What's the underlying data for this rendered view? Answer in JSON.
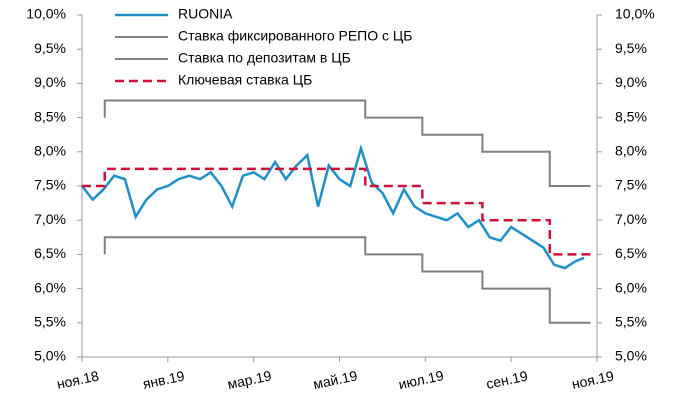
{
  "chart_data": {
    "type": "line",
    "xticks": [
      {
        "value": 0,
        "label": "ноя.18"
      },
      {
        "value": 2,
        "label": "янв.19"
      },
      {
        "value": 4,
        "label": "мар.19"
      },
      {
        "value": 6,
        "label": "май.19"
      },
      {
        "value": 8,
        "label": "июл.19"
      },
      {
        "value": 10,
        "label": "сен.19"
      },
      {
        "value": 12,
        "label": "ноя.19"
      }
    ],
    "xlim": [
      0,
      12
    ],
    "ylim": [
      5,
      10
    ],
    "yticks": [
      {
        "value": 5,
        "label": "5,0%"
      },
      {
        "value": 5.5,
        "label": "5,5%"
      },
      {
        "value": 6,
        "label": "6,0%"
      },
      {
        "value": 6.5,
        "label": "6,5%"
      },
      {
        "value": 7,
        "label": "7,0%"
      },
      {
        "value": 7.5,
        "label": "7,5%"
      },
      {
        "value": 8,
        "label": "8,0%"
      },
      {
        "value": 8.5,
        "label": "8,5%"
      },
      {
        "value": 9,
        "label": "9,0%"
      },
      {
        "value": 9.5,
        "label": "9,5%"
      },
      {
        "value": 10,
        "label": "10,0%"
      }
    ],
    "series": [
      {
        "name": "RUONIA",
        "color": "#1f8fc7",
        "dash": false,
        "width": 2.5,
        "x": [
          0,
          0.25,
          0.5,
          0.75,
          1,
          1.25,
          1.5,
          1.75,
          2,
          2.25,
          2.5,
          2.75,
          3,
          3.25,
          3.5,
          3.75,
          4,
          4.25,
          4.5,
          4.75,
          5,
          5.25,
          5.5,
          5.75,
          6,
          6.25,
          6.5,
          6.75,
          7,
          7.25,
          7.5,
          7.75,
          8,
          8.25,
          8.5,
          8.75,
          9,
          9.25,
          9.5,
          9.75,
          10,
          10.25,
          10.5,
          10.75,
          11,
          11.25,
          11.5,
          11.7
        ],
        "values": [
          7.5,
          7.3,
          7.45,
          7.65,
          7.6,
          7.05,
          7.3,
          7.45,
          7.5,
          7.6,
          7.65,
          7.6,
          7.7,
          7.5,
          7.2,
          7.65,
          7.7,
          7.6,
          7.85,
          7.6,
          7.8,
          7.95,
          7.2,
          7.8,
          7.6,
          7.5,
          8.05,
          7.55,
          7.4,
          7.1,
          7.45,
          7.2,
          7.1,
          7.05,
          7.0,
          7.1,
          6.9,
          7.0,
          6.75,
          6.7,
          6.9,
          6.8,
          6.7,
          6.6,
          6.35,
          6.3,
          6.4,
          6.45
        ]
      },
      {
        "name": "Ставка фиксированного РЕПО с ЦБ",
        "color": "#7f7f7f",
        "dash": false,
        "width": 2,
        "x": [
          0.53,
          0.53,
          6.6,
          6.6,
          7.93,
          7.93,
          9.33,
          9.33,
          10.9,
          10.9,
          11.85
        ],
        "values": [
          8.5,
          8.75,
          8.75,
          8.5,
          8.5,
          8.25,
          8.25,
          8.0,
          8.0,
          7.5,
          7.5
        ]
      },
      {
        "name": "Ставка по депозитам в ЦБ",
        "color": "#7f7f7f",
        "dash": false,
        "width": 2,
        "x": [
          0.53,
          0.53,
          6.6,
          6.6,
          7.93,
          7.93,
          9.33,
          9.33,
          10.9,
          10.9,
          11.85
        ],
        "values": [
          6.5,
          6.75,
          6.75,
          6.5,
          6.5,
          6.25,
          6.25,
          6.0,
          6.0,
          5.5,
          5.5
        ]
      },
      {
        "name": "Ключевая ставка ЦБ",
        "color": "#d0103a",
        "dash": true,
        "width": 2.5,
        "x": [
          0,
          0.53,
          0.53,
          6.6,
          6.6,
          7.93,
          7.93,
          9.33,
          9.33,
          10.9,
          10.9,
          11.85
        ],
        "values": [
          7.5,
          7.5,
          7.75,
          7.75,
          7.5,
          7.5,
          7.25,
          7.25,
          7.0,
          7.0,
          6.5,
          6.5
        ]
      }
    ]
  }
}
